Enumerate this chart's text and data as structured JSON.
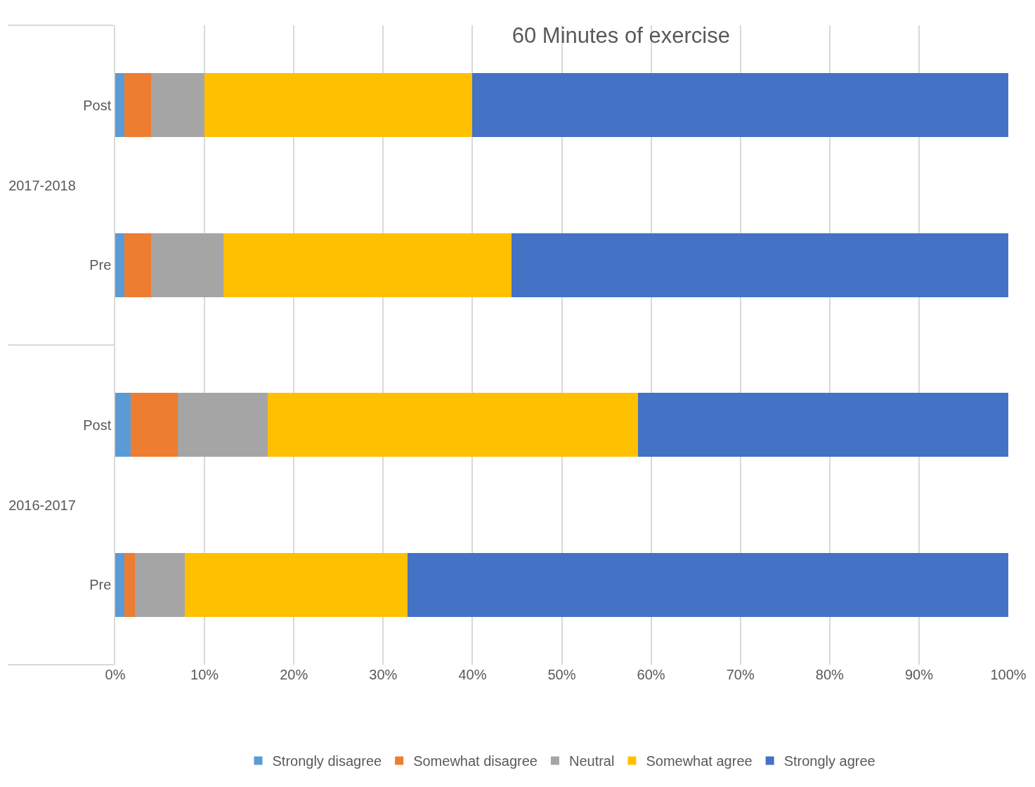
{
  "chart_data": {
    "type": "bar",
    "title": "60 Minutes of exercise",
    "orientation": "horizontal",
    "stacked": true,
    "categories": [
      "Post",
      "Pre",
      "Post",
      "Pre"
    ],
    "y2_categories": [
      "2017-2018",
      null,
      "2016-2017",
      null
    ],
    "series": [
      {
        "name": "Strongly disagree",
        "color": "#5b9bd5",
        "values": [
          1.0,
          1.0,
          1.7,
          1.0
        ]
      },
      {
        "name": "Somewhat disagree",
        "color": "#ed7d31",
        "values": [
          3.0,
          3.0,
          5.3,
          1.2
        ]
      },
      {
        "name": "Neutral",
        "color": "#a5a5a5",
        "values": [
          6.0,
          8.1,
          10.1,
          5.6
        ]
      },
      {
        "name": "Somewhat agree",
        "color": "#ffc000",
        "values": [
          30.0,
          32.3,
          41.4,
          24.9
        ]
      },
      {
        "name": "Strongly agree",
        "color": "#4472c4",
        "values": [
          60.0,
          55.6,
          41.5,
          67.3
        ]
      }
    ],
    "xlim": [
      0,
      100
    ],
    "xticks": [
      {
        "value": 0,
        "label": "0%"
      },
      {
        "value": 10,
        "label": "10%"
      },
      {
        "value": 20,
        "label": "20%"
      },
      {
        "value": 30,
        "label": "30%"
      },
      {
        "value": 40,
        "label": "40%"
      },
      {
        "value": 50,
        "label": "50%"
      },
      {
        "value": 60,
        "label": "60%"
      },
      {
        "value": 70,
        "label": "70%"
      },
      {
        "value": 80,
        "label": "80%"
      },
      {
        "value": 90,
        "label": "90%"
      },
      {
        "value": 100,
        "label": "100%"
      }
    ],
    "grid": "x",
    "legend": "bottom"
  }
}
